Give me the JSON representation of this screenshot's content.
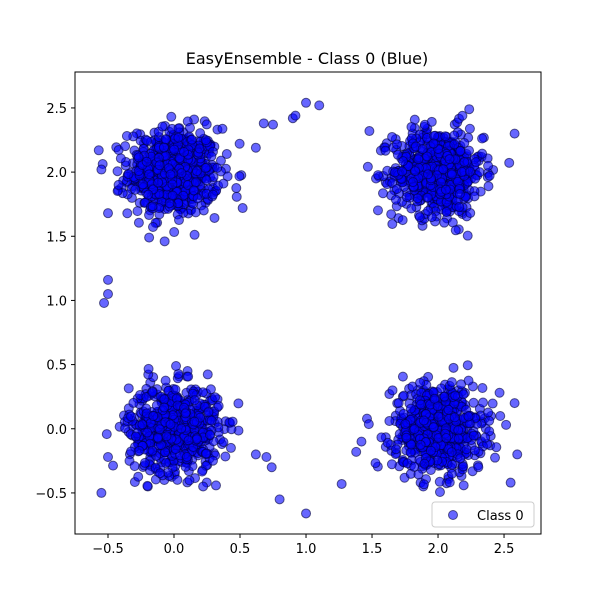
{
  "chart_data": {
    "type": "scatter",
    "title": "EasyEnsemble - Class 0 (Blue)",
    "xlabel": "",
    "ylabel": "",
    "xlim": [
      -0.75,
      2.78
    ],
    "ylim": [
      -0.82,
      2.78
    ],
    "xticks": [
      -0.5,
      0.0,
      0.5,
      1.0,
      1.5,
      2.0,
      2.5
    ],
    "xtick_labels": [
      "−0.5",
      "0.0",
      "0.5",
      "1.0",
      "1.5",
      "2.0",
      "2.5"
    ],
    "yticks": [
      -0.5,
      0.0,
      0.5,
      1.0,
      1.5,
      2.0,
      2.5
    ],
    "ytick_labels": [
      "−0.5",
      "0.0",
      "0.5",
      "1.0",
      "1.5",
      "2.0",
      "2.5"
    ],
    "grid": false,
    "legend": {
      "placement": "lower-right",
      "entries": [
        "Class 0"
      ]
    },
    "colors": {
      "marker_fill": "#0000ff",
      "marker_edge": "#00003c",
      "marker_alpha": 0.6
    },
    "series": [
      {
        "name": "Class 0",
        "clusters": [
          {
            "center": [
              0.0,
              2.0
            ],
            "spread": 0.17,
            "count": 650
          },
          {
            "center": [
              2.0,
              2.0
            ],
            "spread": 0.17,
            "count": 650
          },
          {
            "center": [
              0.0,
              0.0
            ],
            "spread": 0.17,
            "count": 650
          },
          {
            "center": [
              2.0,
              0.0
            ],
            "spread": 0.17,
            "count": 650
          }
        ],
        "outlier_points": [
          [
            -0.55,
            2.02
          ],
          [
            -0.5,
            1.68
          ],
          [
            -0.57,
            2.17
          ],
          [
            0.75,
            2.37
          ],
          [
            0.62,
            2.19
          ],
          [
            0.9,
            2.42
          ],
          [
            0.92,
            2.44
          ],
          [
            1.0,
            2.54
          ],
          [
            1.1,
            2.52
          ],
          [
            -0.5,
            1.16
          ],
          [
            -0.5,
            1.05
          ],
          [
            -0.53,
            0.98
          ],
          [
            -0.5,
            -0.22
          ],
          [
            -0.55,
            -0.5
          ],
          [
            0.62,
            -0.2
          ],
          [
            0.7,
            -0.22
          ],
          [
            0.74,
            -0.3
          ],
          [
            0.8,
            -0.55
          ],
          [
            1.0,
            -0.66
          ],
          [
            1.27,
            -0.43
          ],
          [
            1.38,
            -0.18
          ],
          [
            0.68,
            2.38
          ],
          [
            0.52,
            1.72
          ],
          [
            -0.42,
            1.9
          ],
          [
            2.58,
            2.3
          ],
          [
            2.6,
            -0.2
          ],
          [
            2.55,
            -0.42
          ],
          [
            1.48,
            2.32
          ],
          [
            2.58,
            0.2
          ],
          [
            1.42,
            -0.1
          ]
        ]
      }
    ]
  }
}
